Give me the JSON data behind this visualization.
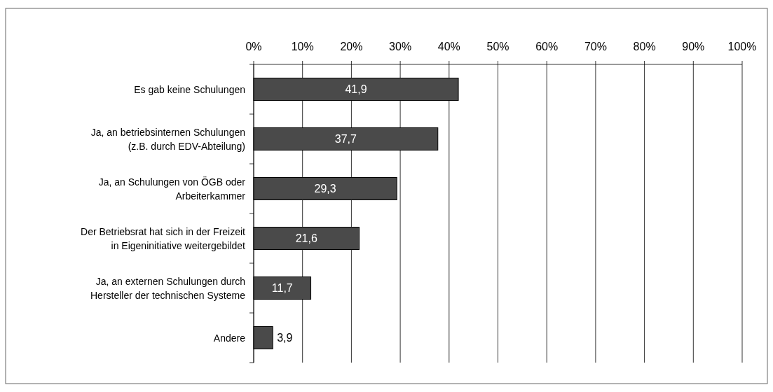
{
  "chart_data": {
    "type": "bar",
    "orientation": "horizontal",
    "categories": [
      "Es gab keine Schulungen",
      "Ja, an betriebsinternen Schulungen\n(z.B. durch EDV-Abteilung)",
      "Ja, an Schulungen von ÖGB oder\nArbeiterkammer",
      "Der Betriebsrat hat sich in der Freizeit\nin Eigeninitiative weitergebildet",
      "Ja, an externen Schulungen durch\nHersteller der technischen Systeme",
      "Andere"
    ],
    "values": [
      41.9,
      37.7,
      29.3,
      21.6,
      11.7,
      3.9
    ],
    "value_labels": [
      "41,9",
      "37,7",
      "29,3",
      "21,6",
      "11,7",
      "3,9"
    ],
    "color": "#4a4a4a",
    "xlim": [
      0,
      100
    ],
    "xticks": [
      {
        "value": 0,
        "label": "0%"
      },
      {
        "value": 10,
        "label": "10%"
      },
      {
        "value": 20,
        "label": "20%"
      },
      {
        "value": 30,
        "label": "30%"
      },
      {
        "value": 40,
        "label": "40%"
      },
      {
        "value": 50,
        "label": "50%"
      },
      {
        "value": 60,
        "label": "60%"
      },
      {
        "value": 70,
        "label": "70%"
      },
      {
        "value": 80,
        "label": "80%"
      },
      {
        "value": 90,
        "label": "90%"
      },
      {
        "value": 100,
        "label": "100%"
      }
    ],
    "grid": "x"
  }
}
